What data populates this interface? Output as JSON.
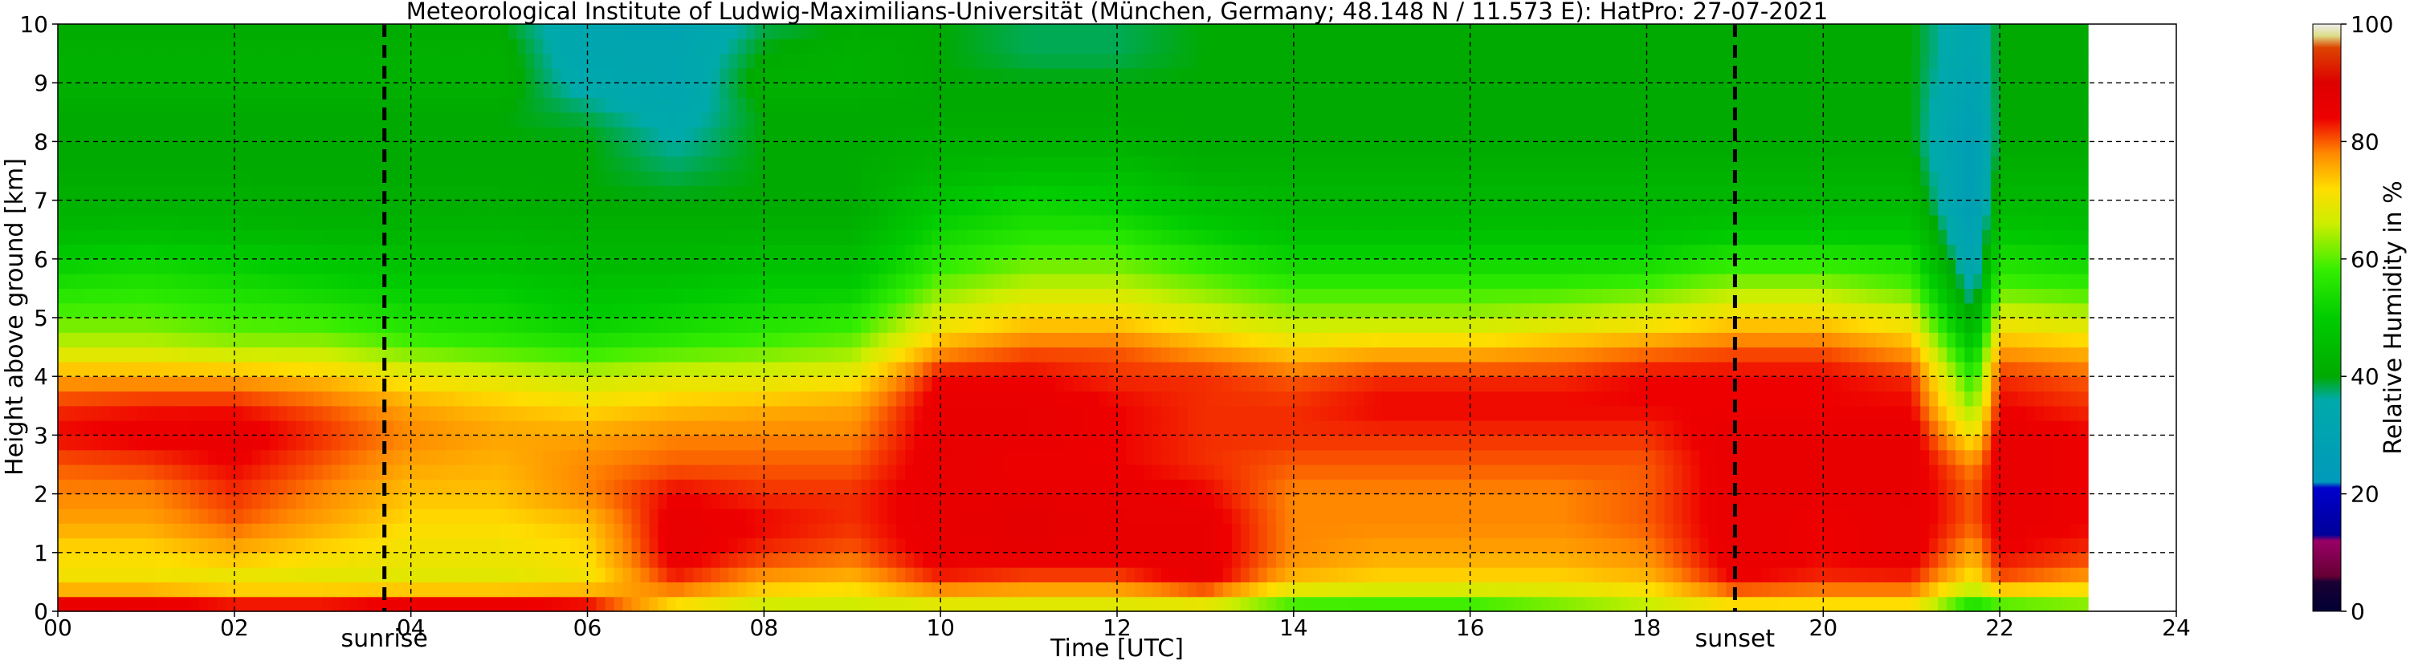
{
  "chart_data": {
    "type": "heatmap",
    "title": "Meteorological Institute of Ludwig-Maximilians-Universität (München, Germany; 48.148 N / 11.573 E):    HatPro: 27-07-2021",
    "xlabel": "Time [UTC]",
    "ylabel": "Height above ground [km]",
    "colorbar_label": "Relative Humidity in %",
    "xlim": [
      0,
      24
    ],
    "ylim": [
      0,
      10
    ],
    "x_ticks": [
      "00",
      "02",
      "04",
      "06",
      "08",
      "10",
      "12",
      "14",
      "16",
      "18",
      "20",
      "22",
      "24"
    ],
    "y_ticks": [
      "0",
      "1",
      "2",
      "3",
      "4",
      "5",
      "6",
      "7",
      "8",
      "9",
      "10"
    ],
    "colorbar_ticks": [
      "0",
      "20",
      "40",
      "60",
      "80",
      "100"
    ],
    "colorbar_range": [
      0,
      100
    ],
    "data_end_hour": 23.0,
    "grid": true,
    "events": [
      {
        "label": "sunrise",
        "hour": 3.7
      },
      {
        "label": "sunset",
        "hour": 19.0
      }
    ],
    "heights_km": [
      0.05,
      0.5,
      1,
      1.5,
      2,
      2.5,
      3,
      3.5,
      4,
      4.5,
      5,
      5.5,
      6,
      6.5,
      7,
      7.5,
      8,
      8.5,
      9,
      9.5,
      10
    ],
    "series": [
      {
        "hour": 0,
        "rh": [
          88,
          70,
          72,
          76,
          78,
          80,
          84,
          82,
          76,
          66,
          60,
          55,
          50,
          44,
          42,
          40,
          40,
          40,
          42,
          42,
          40
        ]
      },
      {
        "hour": 1,
        "rh": [
          88,
          70,
          72,
          76,
          78,
          81,
          85,
          83,
          76,
          66,
          60,
          56,
          52,
          45,
          42,
          40,
          40,
          40,
          42,
          42,
          40
        ]
      },
      {
        "hour": 2,
        "rh": [
          86,
          68,
          75,
          80,
          82,
          84,
          86,
          83,
          76,
          64,
          58,
          54,
          50,
          44,
          42,
          40,
          40,
          40,
          42,
          42,
          40
        ]
      },
      {
        "hour": 3,
        "rh": [
          86,
          68,
          72,
          76,
          78,
          80,
          82,
          80,
          74,
          64,
          57,
          52,
          48,
          43,
          41,
          40,
          40,
          40,
          42,
          42,
          40
        ]
      },
      {
        "hour": 4,
        "rh": [
          88,
          68,
          70,
          72,
          74,
          76,
          78,
          76,
          70,
          60,
          54,
          50,
          46,
          43,
          41,
          40,
          40,
          40,
          42,
          42,
          40
        ]
      },
      {
        "hour": 5,
        "rh": [
          88,
          68,
          70,
          72,
          74,
          75,
          76,
          74,
          68,
          58,
          53,
          50,
          46,
          43,
          41,
          40,
          40,
          40,
          42,
          42,
          40
        ]
      },
      {
        "hour": 6,
        "rh": [
          86,
          70,
          72,
          74,
          78,
          78,
          76,
          72,
          66,
          56,
          50,
          47,
          44,
          42,
          40,
          40,
          40,
          38,
          34,
          32,
          32
        ]
      },
      {
        "hour": 7,
        "rh": [
          70,
          82,
          86,
          86,
          84,
          80,
          78,
          74,
          68,
          58,
          52,
          48,
          44,
          42,
          40,
          38,
          36,
          34,
          32,
          32,
          30
        ]
      },
      {
        "hour": 8,
        "rh": [
          65,
          76,
          82,
          84,
          82,
          80,
          78,
          75,
          68,
          60,
          54,
          50,
          46,
          42,
          40,
          40,
          40,
          40,
          42,
          40,
          38
        ]
      },
      {
        "hour": 9,
        "rh": [
          65,
          74,
          80,
          82,
          82,
          80,
          78,
          76,
          70,
          62,
          56,
          50,
          46,
          42,
          40,
          40,
          40,
          40,
          42,
          42,
          40
        ]
      },
      {
        "hour": 10,
        "rh": [
          66,
          82,
          86,
          86,
          86,
          86,
          86,
          86,
          84,
          76,
          68,
          62,
          56,
          52,
          48,
          44,
          42,
          40,
          40,
          40,
          40
        ]
      },
      {
        "hour": 11,
        "rh": [
          66,
          80,
          86,
          88,
          86,
          84,
          86,
          86,
          84,
          80,
          72,
          66,
          60,
          55,
          52,
          46,
          42,
          40,
          40,
          38,
          38
        ]
      },
      {
        "hour": 12,
        "rh": [
          66,
          80,
          86,
          86,
          86,
          84,
          84,
          84,
          82,
          80,
          72,
          66,
          60,
          55,
          50,
          46,
          42,
          40,
          40,
          38,
          38
        ]
      },
      {
        "hour": 13,
        "rh": [
          66,
          86,
          86,
          86,
          84,
          82,
          82,
          82,
          82,
          76,
          68,
          62,
          56,
          50,
          46,
          42,
          40,
          40,
          40,
          40,
          40
        ]
      },
      {
        "hour": 14,
        "rh": [
          56,
          74,
          78,
          78,
          78,
          80,
          82,
          82,
          80,
          72,
          64,
          58,
          52,
          46,
          44,
          42,
          40,
          40,
          40,
          40,
          40
        ]
      },
      {
        "hour": 15,
        "rh": [
          56,
          72,
          76,
          78,
          78,
          80,
          82,
          84,
          82,
          74,
          64,
          58,
          52,
          46,
          44,
          42,
          40,
          40,
          40,
          40,
          40
        ]
      },
      {
        "hour": 16,
        "rh": [
          56,
          72,
          76,
          78,
          78,
          80,
          82,
          84,
          82,
          74,
          64,
          58,
          52,
          46,
          44,
          42,
          40,
          40,
          40,
          40,
          40
        ]
      },
      {
        "hour": 17,
        "rh": [
          60,
          72,
          76,
          78,
          78,
          80,
          82,
          84,
          82,
          76,
          66,
          58,
          52,
          46,
          44,
          42,
          40,
          40,
          40,
          40,
          40
        ]
      },
      {
        "hour": 18,
        "rh": [
          64,
          74,
          78,
          80,
          80,
          80,
          82,
          84,
          84,
          78,
          68,
          60,
          52,
          46,
          44,
          42,
          40,
          40,
          40,
          40,
          40
        ]
      },
      {
        "hour": 19,
        "rh": [
          70,
          84,
          86,
          86,
          86,
          86,
          86,
          84,
          84,
          80,
          72,
          64,
          56,
          48,
          44,
          42,
          40,
          40,
          40,
          40,
          40
        ]
      },
      {
        "hour": 20,
        "rh": [
          70,
          82,
          84,
          84,
          86,
          86,
          86,
          84,
          84,
          80,
          72,
          64,
          56,
          48,
          44,
          42,
          40,
          40,
          40,
          40,
          40
        ]
      },
      {
        "hour": 21,
        "rh": [
          70,
          82,
          86,
          86,
          86,
          86,
          86,
          84,
          82,
          76,
          68,
          60,
          54,
          48,
          44,
          42,
          40,
          40,
          40,
          40,
          40
        ]
      },
      {
        "hour": 21.7,
        "rh": [
          52,
          70,
          76,
          80,
          80,
          78,
          70,
          62,
          56,
          48,
          40,
          34,
          30,
          28,
          26,
          26,
          26,
          28,
          30,
          32,
          32
        ]
      },
      {
        "hour": 22,
        "rh": [
          56,
          80,
          84,
          86,
          86,
          86,
          86,
          84,
          82,
          76,
          68,
          60,
          54,
          48,
          44,
          42,
          40,
          40,
          40,
          40,
          40
        ]
      },
      {
        "hour": 23,
        "rh": [
          60,
          76,
          82,
          84,
          84,
          84,
          84,
          82,
          80,
          74,
          66,
          58,
          52,
          46,
          44,
          42,
          40,
          40,
          40,
          40,
          40
        ]
      }
    ],
    "colormap": [
      {
        "v": 0,
        "color": "#000033"
      },
      {
        "v": 5,
        "color": "#1a0033"
      },
      {
        "v": 6,
        "color": "#660033"
      },
      {
        "v": 12,
        "color": "#990066"
      },
      {
        "v": 13,
        "color": "#000099"
      },
      {
        "v": 21,
        "color": "#0000cc"
      },
      {
        "v": 22,
        "color": "#0099bb"
      },
      {
        "v": 36,
        "color": "#00aaaa"
      },
      {
        "v": 40,
        "color": "#00aa00"
      },
      {
        "v": 50,
        "color": "#00cc00"
      },
      {
        "v": 58,
        "color": "#33ee00"
      },
      {
        "v": 66,
        "color": "#ccee00"
      },
      {
        "v": 72,
        "color": "#ffdd00"
      },
      {
        "v": 78,
        "color": "#ff8800"
      },
      {
        "v": 84,
        "color": "#ee0000"
      },
      {
        "v": 90,
        "color": "#dd0000"
      },
      {
        "v": 96,
        "color": "#dd4400"
      },
      {
        "v": 98,
        "color": "#dddd88"
      },
      {
        "v": 100,
        "color": "#eeeeee"
      }
    ]
  }
}
